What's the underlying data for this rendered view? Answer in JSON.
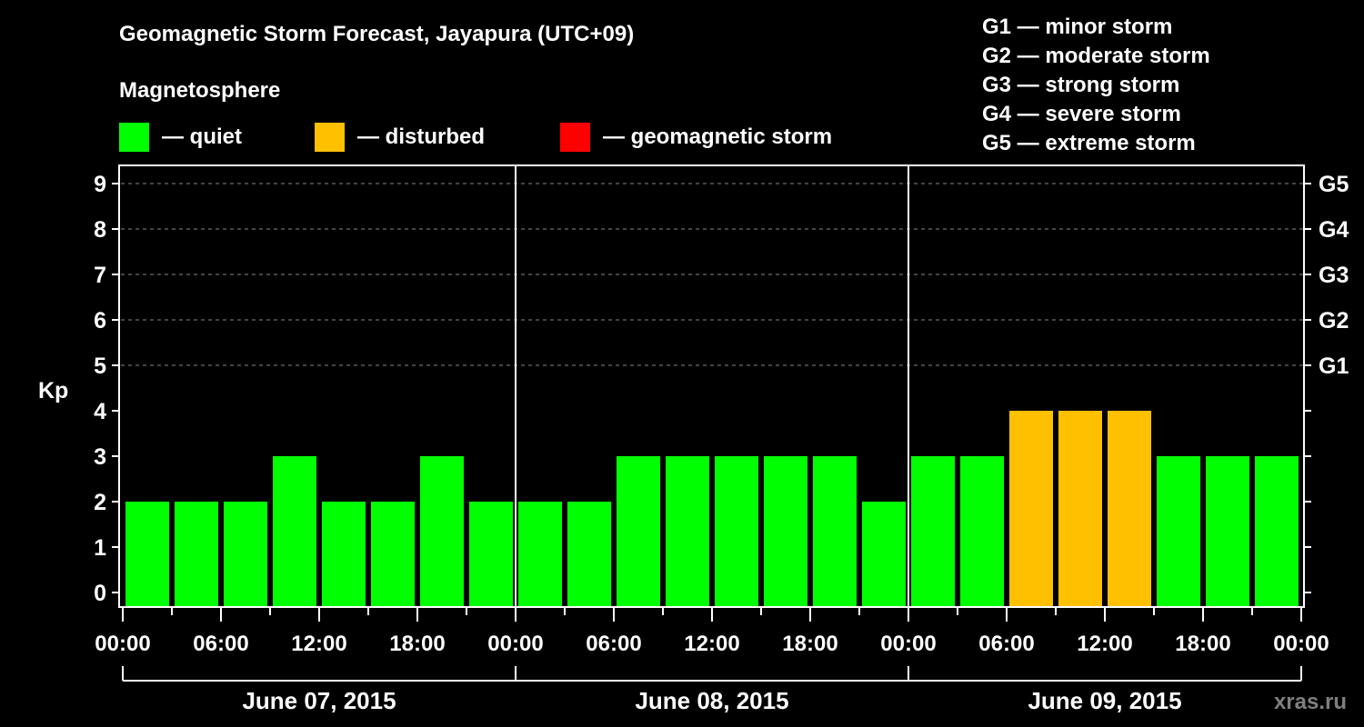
{
  "header": {
    "title": "Geomagnetic Storm Forecast, Jayapura (UTC+09)",
    "subtitle": "Magnetosphere"
  },
  "legend": [
    {
      "label": "— quiet",
      "color": "#00ff00"
    },
    {
      "label": "— disturbed",
      "color": "#ffc000"
    },
    {
      "label": "— geomagnetic storm",
      "color": "#ff0000"
    }
  ],
  "g_scale": [
    "G1 — minor storm",
    "G2 — moderate storm",
    "G3 — strong storm",
    "G4 — severe storm",
    "G5 — extreme storm"
  ],
  "watermark": "xras.ru",
  "colors": {
    "background": "#000000",
    "axis": "#ffffff",
    "grid": "#888888",
    "quiet": "#00ff00",
    "disturbed": "#ffc000",
    "storm": "#ff0000",
    "watermark": "#7f7f7f"
  },
  "chart_data": {
    "type": "bar",
    "title": "Geomagnetic Storm Forecast, Jayapura (UTC+09)",
    "xlabel": "",
    "ylabel": "Kp",
    "ylim": [
      0,
      9
    ],
    "yticks": [
      0,
      1,
      2,
      3,
      4,
      5,
      6,
      7,
      8,
      9
    ],
    "right_axis_labels": [
      {
        "kp": 5,
        "label": "G1"
      },
      {
        "kp": 6,
        "label": "G2"
      },
      {
        "kp": 7,
        "label": "G3"
      },
      {
        "kp": 8,
        "label": "G4"
      },
      {
        "kp": 9,
        "label": "G5"
      }
    ],
    "grid": {
      "horizontal_dashed_at": [
        5,
        6,
        7,
        8,
        9
      ]
    },
    "legend_position": "top",
    "x_tick_labels": [
      "00:00",
      "06:00",
      "12:00",
      "18:00",
      "00:00",
      "06:00",
      "12:00",
      "18:00",
      "00:00",
      "06:00",
      "12:00",
      "18:00",
      "00:00"
    ],
    "interval_hours": 3,
    "days": [
      {
        "label": "June 07, 2015",
        "values": [
          2,
          2,
          2,
          3,
          2,
          2,
          3,
          2
        ]
      },
      {
        "label": "June 08, 2015",
        "values": [
          2,
          2,
          3,
          3,
          3,
          3,
          3,
          2
        ]
      },
      {
        "label": "June 09, 2015",
        "values": [
          3,
          3,
          4,
          4,
          4,
          3,
          3,
          3
        ]
      }
    ],
    "categories": [
      "06-07 00:00",
      "06-07 03:00",
      "06-07 06:00",
      "06-07 09:00",
      "06-07 12:00",
      "06-07 15:00",
      "06-07 18:00",
      "06-07 21:00",
      "06-08 00:00",
      "06-08 03:00",
      "06-08 06:00",
      "06-08 09:00",
      "06-08 12:00",
      "06-08 15:00",
      "06-08 18:00",
      "06-08 21:00",
      "06-09 00:00",
      "06-09 03:00",
      "06-09 06:00",
      "06-09 09:00",
      "06-09 12:00",
      "06-09 15:00",
      "06-09 18:00",
      "06-09 21:00"
    ],
    "values": [
      2,
      2,
      2,
      3,
      2,
      2,
      3,
      2,
      2,
      2,
      3,
      3,
      3,
      3,
      3,
      2,
      3,
      3,
      4,
      4,
      4,
      3,
      3,
      3
    ],
    "color_rule": {
      "quiet": "Kp < 4",
      "disturbed": "Kp = 4",
      "storm": "Kp >= 5"
    }
  }
}
